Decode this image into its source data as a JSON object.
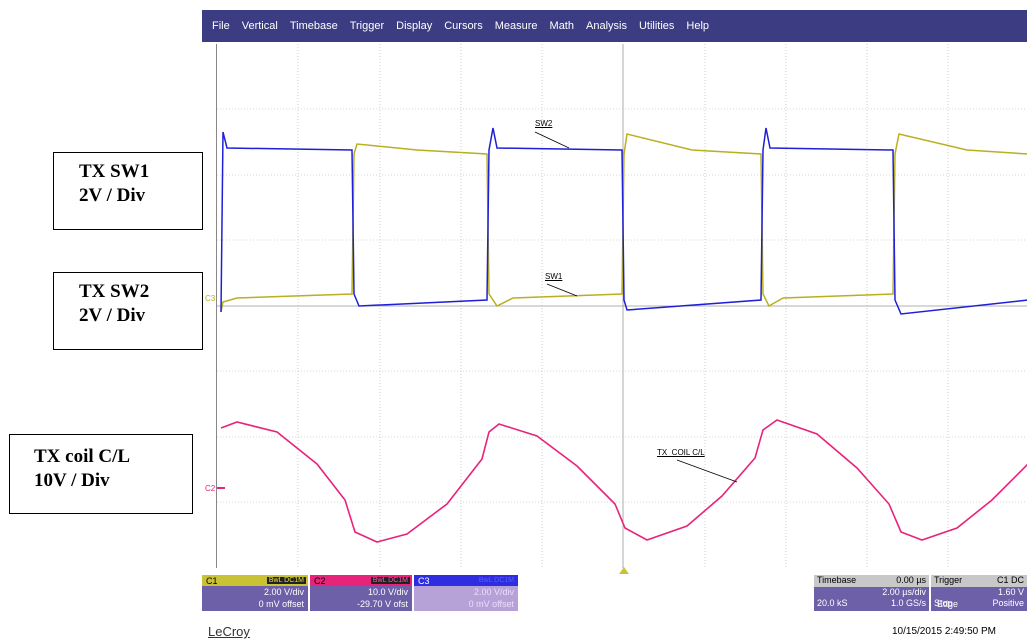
{
  "menu": [
    "File",
    "Vertical",
    "Timebase",
    "Trigger",
    "Display",
    "Cursors",
    "Measure",
    "Math",
    "Analysis",
    "Utilities",
    "Help"
  ],
  "labels": [
    {
      "line1": "TX SW1",
      "line2": "2V / Div"
    },
    {
      "line1": "TX SW2",
      "line2": "2V / Div"
    },
    {
      "line1": "TX coil C/L",
      "line2": "10V / Div"
    }
  ],
  "traces": {
    "sw2_label": "SW2",
    "sw1_label": "SW1",
    "coil_label": "TX_COIL C/L",
    "c3_marker": "C3",
    "c2_marker": "C2"
  },
  "channels": [
    {
      "id": "C1",
      "tag": "BwL DC1M",
      "vdiv": "2.00 V/div",
      "offset": "0 mV offset",
      "color": "#c9c234"
    },
    {
      "id": "C2",
      "tag": "BwL DC1M",
      "vdiv": "10.0 V/div",
      "offset": "-29.70 V ofst",
      "color": "#e8237a"
    },
    {
      "id": "C3",
      "tag": "BwL DC1M",
      "vdiv": "2.00 V/div",
      "offset": "0 mV offset",
      "color": "#2e2ee0"
    }
  ],
  "timebase": {
    "label": "Timebase",
    "delay": "0.00 µs",
    "per_div": "2.00 µs/div",
    "samples": "20.0 kS",
    "rate": "1.0 GS/s"
  },
  "trigger": {
    "label": "Trigger",
    "tag": "C1 DC",
    "level": "1.60 V",
    "mode": "Stop",
    "type": "Edge",
    "slope": "Positive"
  },
  "logo": "LeCroy",
  "datetime": "10/15/2015 2:49:50 PM"
}
